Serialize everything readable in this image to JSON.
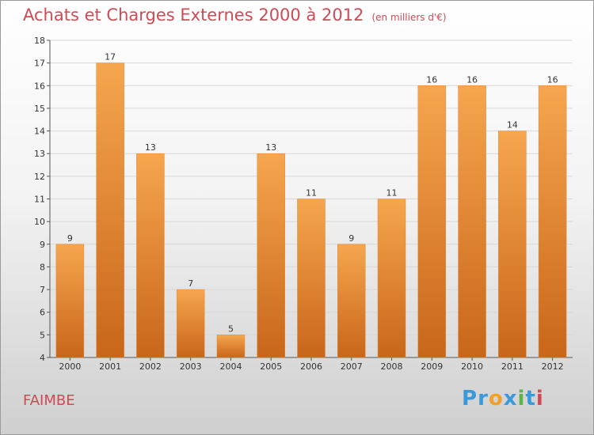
{
  "title": "Achats et Charges Externes 2000 à 2012",
  "subtitle": "(en milliers d'€)",
  "commune": "FAIMBE",
  "logo": {
    "text": "Proxiti",
    "letters": [
      {
        "ch": "P",
        "color": "#3a9ad9"
      },
      {
        "ch": "r",
        "color": "#3a9ad9"
      },
      {
        "ch": "o",
        "color": "#f0a028"
      },
      {
        "ch": "x",
        "color": "#3a9ad9"
      },
      {
        "ch": "i",
        "color": "#5db548"
      },
      {
        "ch": "t",
        "color": "#3a9ad9"
      },
      {
        "ch": "i",
        "color": "#d04a55"
      }
    ]
  },
  "colors": {
    "bar_light": "#f6a64e",
    "bar_dark": "#c8661a",
    "title": "#d04a55"
  },
  "chart_data": {
    "type": "bar",
    "title": "Achats et Charges Externes 2000 à 2012",
    "subtitle": "(en milliers d'€)",
    "categories": [
      "2000",
      "2001",
      "2002",
      "2003",
      "2004",
      "2005",
      "2006",
      "2007",
      "2008",
      "2009",
      "2010",
      "2011",
      "2012"
    ],
    "values": [
      9,
      17,
      13,
      7,
      5,
      13,
      11,
      9,
      11,
      16,
      16,
      14,
      16
    ],
    "ylim": [
      4,
      18
    ],
    "yticks": [
      4,
      5,
      6,
      7,
      8,
      9,
      10,
      11,
      12,
      13,
      14,
      15,
      16,
      17,
      18
    ],
    "grid": true,
    "xlabel": "",
    "ylabel": ""
  }
}
